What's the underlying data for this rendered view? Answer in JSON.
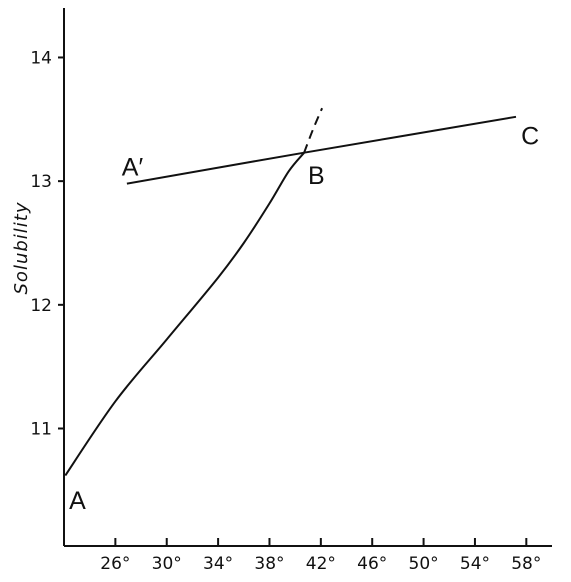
{
  "chart_data": {
    "type": "line",
    "title": "",
    "xlabel": "",
    "ylabel": "Solubility",
    "xlim": [
      22,
      60
    ],
    "ylim": [
      10.05,
      14.4
    ],
    "x_ticks": [
      26,
      30,
      34,
      38,
      42,
      46,
      50,
      54,
      58
    ],
    "x_tick_labels": [
      "26°",
      "30°",
      "34°",
      "38°",
      "42°",
      "46°",
      "50°",
      "54°",
      "58°"
    ],
    "y_ticks": [
      11,
      12,
      13,
      14
    ],
    "y_tick_labels": [
      "11",
      "12",
      "13",
      "14"
    ],
    "grid": false,
    "series": [
      {
        "name": "",
        "style": "solid",
        "x": [
          22.1,
          26.0,
          30.0,
          34.0,
          36.0,
          38.0,
          39.5,
          40.7
        ],
        "y": [
          10.62,
          11.22,
          11.72,
          12.22,
          12.5,
          12.82,
          13.08,
          13.23
        ]
      },
      {
        "name": "",
        "style": "dashed",
        "x": [
          40.7,
          41.4,
          42.1
        ],
        "y": [
          13.23,
          13.42,
          13.59
        ]
      },
      {
        "name": "",
        "style": "solid",
        "x": [
          26.9,
          40.7,
          57.2
        ],
        "y": [
          12.98,
          13.23,
          13.52
        ]
      }
    ],
    "annotations": [
      {
        "text": "A",
        "x": 22.4,
        "y": 10.42
      },
      {
        "text": "A′",
        "x": 26.5,
        "y": 13.12
      },
      {
        "text": "B",
        "x": 41.0,
        "y": 13.05
      },
      {
        "text": "C",
        "x": 57.6,
        "y": 13.37
      }
    ]
  }
}
